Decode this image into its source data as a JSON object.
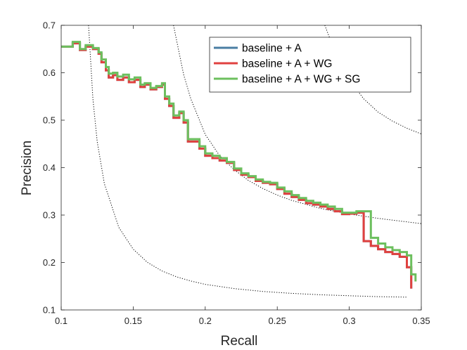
{
  "chart_data": {
    "type": "line",
    "title": "",
    "xlabel": "Recall",
    "ylabel": "Precision",
    "xlim": [
      0.1,
      0.35
    ],
    "ylim": [
      0.1,
      0.7
    ],
    "xticks": [
      "0.1",
      "0.15",
      "0.2",
      "0.25",
      "0.3",
      "0.35"
    ],
    "xtick_values": [
      0.1,
      0.15,
      0.2,
      0.25,
      0.3,
      0.35
    ],
    "yticks": [
      "0.1",
      "0.2",
      "0.3",
      "0.4",
      "0.5",
      "0.6",
      "0.7"
    ],
    "ytick_values": [
      0.1,
      0.2,
      0.3,
      0.4,
      0.5,
      0.6,
      0.7
    ],
    "grid": false,
    "legend_position": "top-right",
    "series": [
      {
        "name": "baseline + A",
        "color": "#4a7ea3",
        "style": "solid",
        "x": [
          0.1,
          0.108,
          0.113,
          0.117,
          0.122,
          0.126,
          0.128,
          0.131,
          0.133,
          0.136,
          0.139,
          0.143,
          0.147,
          0.151,
          0.155,
          0.158,
          0.162,
          0.166,
          0.17,
          0.172,
          0.175,
          0.178,
          0.182,
          0.185,
          0.188,
          0.192,
          0.196,
          0.2,
          0.205,
          0.21,
          0.215,
          0.22,
          0.225,
          0.23,
          0.235,
          0.24,
          0.245,
          0.25,
          0.255,
          0.26,
          0.265,
          0.27,
          0.275,
          0.28,
          0.285,
          0.29,
          0.295,
          0.3,
          0.305,
          0.308,
          0.31,
          0.315,
          0.32,
          0.325,
          0.33,
          0.335,
          0.34,
          0.343
        ],
        "y": [
          0.655,
          0.662,
          0.648,
          0.655,
          0.65,
          0.64,
          0.622,
          0.605,
          0.59,
          0.595,
          0.585,
          0.59,
          0.58,
          0.585,
          0.57,
          0.575,
          0.565,
          0.57,
          0.575,
          0.545,
          0.53,
          0.505,
          0.515,
          0.495,
          0.455,
          0.455,
          0.44,
          0.425,
          0.42,
          0.415,
          0.41,
          0.395,
          0.385,
          0.38,
          0.372,
          0.368,
          0.365,
          0.355,
          0.345,
          0.338,
          0.332,
          0.325,
          0.322,
          0.318,
          0.313,
          0.308,
          0.302,
          0.303,
          0.305,
          0.305,
          0.245,
          0.235,
          0.228,
          0.222,
          0.218,
          0.212,
          0.19,
          0.145
        ]
      },
      {
        "name": "baseline + A + WG",
        "color": "#e0413f",
        "style": "solid",
        "x": [
          0.1,
          0.108,
          0.113,
          0.117,
          0.122,
          0.126,
          0.128,
          0.131,
          0.133,
          0.136,
          0.139,
          0.143,
          0.147,
          0.151,
          0.155,
          0.158,
          0.162,
          0.166,
          0.17,
          0.172,
          0.175,
          0.178,
          0.182,
          0.185,
          0.188,
          0.192,
          0.196,
          0.2,
          0.205,
          0.21,
          0.215,
          0.22,
          0.225,
          0.23,
          0.235,
          0.24,
          0.245,
          0.25,
          0.255,
          0.26,
          0.265,
          0.27,
          0.275,
          0.28,
          0.285,
          0.29,
          0.295,
          0.3,
          0.305,
          0.308,
          0.31,
          0.315,
          0.32,
          0.325,
          0.33,
          0.335,
          0.34,
          0.343
        ],
        "y": [
          0.655,
          0.662,
          0.648,
          0.655,
          0.65,
          0.64,
          0.622,
          0.605,
          0.59,
          0.595,
          0.585,
          0.59,
          0.58,
          0.585,
          0.57,
          0.575,
          0.565,
          0.57,
          0.575,
          0.545,
          0.53,
          0.505,
          0.515,
          0.495,
          0.455,
          0.455,
          0.44,
          0.425,
          0.42,
          0.415,
          0.41,
          0.395,
          0.385,
          0.38,
          0.372,
          0.368,
          0.365,
          0.355,
          0.345,
          0.338,
          0.332,
          0.325,
          0.322,
          0.318,
          0.313,
          0.308,
          0.302,
          0.303,
          0.305,
          0.305,
          0.245,
          0.235,
          0.228,
          0.222,
          0.218,
          0.212,
          0.19,
          0.145
        ]
      },
      {
        "name": "baseline + A + WG + SG",
        "color": "#6cbf5e",
        "style": "solid",
        "x": [
          0.1,
          0.108,
          0.113,
          0.117,
          0.122,
          0.126,
          0.128,
          0.131,
          0.133,
          0.136,
          0.139,
          0.143,
          0.147,
          0.151,
          0.155,
          0.158,
          0.162,
          0.166,
          0.17,
          0.172,
          0.175,
          0.178,
          0.182,
          0.185,
          0.188,
          0.192,
          0.196,
          0.2,
          0.205,
          0.21,
          0.215,
          0.22,
          0.225,
          0.23,
          0.235,
          0.24,
          0.245,
          0.25,
          0.255,
          0.26,
          0.265,
          0.27,
          0.275,
          0.28,
          0.285,
          0.29,
          0.295,
          0.3,
          0.305,
          0.31,
          0.315,
          0.32,
          0.325,
          0.33,
          0.335,
          0.34,
          0.343,
          0.346
        ],
        "y": [
          0.655,
          0.665,
          0.65,
          0.658,
          0.652,
          0.643,
          0.628,
          0.612,
          0.598,
          0.6,
          0.592,
          0.596,
          0.586,
          0.59,
          0.575,
          0.578,
          0.568,
          0.572,
          0.578,
          0.55,
          0.535,
          0.51,
          0.518,
          0.5,
          0.46,
          0.46,
          0.445,
          0.43,
          0.425,
          0.42,
          0.412,
          0.398,
          0.388,
          0.382,
          0.375,
          0.37,
          0.368,
          0.358,
          0.35,
          0.342,
          0.336,
          0.33,
          0.326,
          0.322,
          0.318,
          0.313,
          0.305,
          0.305,
          0.308,
          0.308,
          0.252,
          0.24,
          0.232,
          0.226,
          0.222,
          0.215,
          0.175,
          0.16
        ]
      }
    ],
    "reference_curves": [
      {
        "name": "f-measure contour low",
        "style": "dotted",
        "color": "#000000",
        "x": [
          0.119,
          0.122,
          0.125,
          0.13,
          0.14,
          0.15,
          0.16,
          0.17,
          0.18,
          0.19,
          0.2,
          0.22,
          0.24,
          0.26,
          0.28,
          0.3,
          0.32,
          0.34
        ],
        "y": [
          0.7,
          0.545,
          0.455,
          0.366,
          0.274,
          0.228,
          0.2,
          0.182,
          0.17,
          0.161,
          0.154,
          0.145,
          0.139,
          0.135,
          0.132,
          0.13,
          0.128,
          0.127
        ]
      },
      {
        "name": "f-measure contour mid",
        "style": "dotted",
        "color": "#000000",
        "x": [
          0.178,
          0.185,
          0.19,
          0.2,
          0.21,
          0.22,
          0.23,
          0.24,
          0.25,
          0.26,
          0.28,
          0.3,
          0.32,
          0.35
        ],
        "y": [
          0.7,
          0.596,
          0.545,
          0.47,
          0.425,
          0.396,
          0.373,
          0.356,
          0.342,
          0.331,
          0.314,
          0.302,
          0.293,
          0.282
        ]
      },
      {
        "name": "f-measure contour high",
        "style": "dotted",
        "color": "#000000",
        "x": [
          0.283,
          0.29,
          0.3,
          0.31,
          0.32,
          0.33,
          0.34,
          0.35
        ],
        "y": [
          0.7,
          0.645,
          0.585,
          0.545,
          0.517,
          0.498,
          0.483,
          0.471
        ]
      }
    ]
  }
}
